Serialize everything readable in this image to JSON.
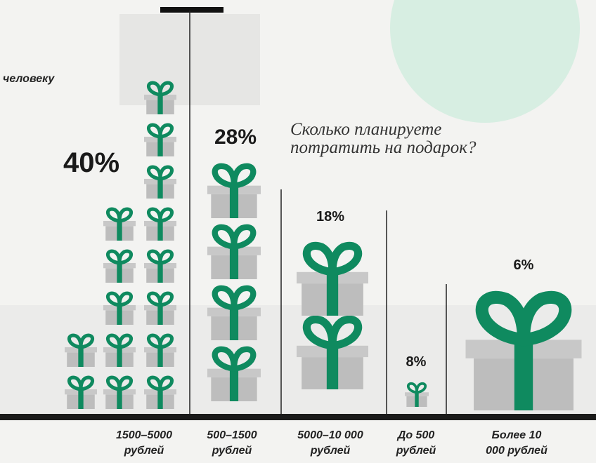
{
  "chart_data": {
    "type": "pictograph",
    "title_fragment": "человеку",
    "question": "Сколько планируете потратить на подарок?",
    "categories": [
      "1500–5000 рублей",
      "500–1500 рублей",
      "5000–10 000 рублей",
      "До 500 рублей",
      "Более 10 000 рублей"
    ],
    "values": [
      40,
      28,
      18,
      8,
      6
    ],
    "value_labels": [
      "40%",
      "28%",
      "18%",
      "8%",
      "6%"
    ],
    "color": "#0f8a5f"
  }
}
